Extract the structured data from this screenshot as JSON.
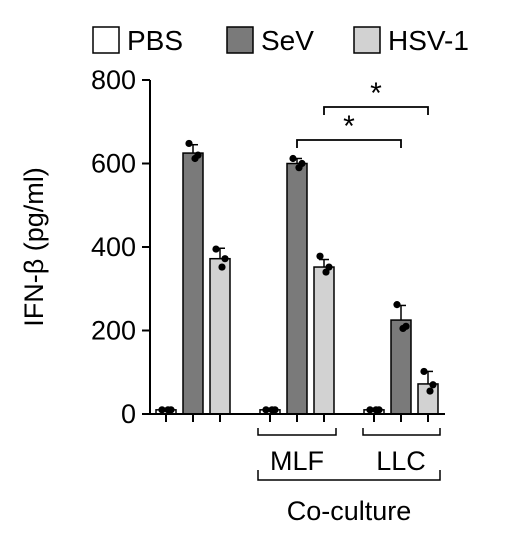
{
  "chart_data": {
    "type": "bar",
    "title": "",
    "ylabel": "IFN-β (pg/ml)",
    "ylim": [
      0,
      800
    ],
    "yticks": [
      "0",
      "200",
      "400",
      "600",
      "800"
    ],
    "legend_placement": "top",
    "groups": [
      {
        "name": "",
        "bracket_label": ""
      },
      {
        "name": "MLF",
        "bracket_label": "MLF"
      },
      {
        "name": "LLC",
        "bracket_label": "LLC"
      }
    ],
    "super_group_label": "Co-culture",
    "series": [
      {
        "name": "PBS",
        "color": "#ffffff",
        "values": [
          10,
          10,
          10
        ],
        "errors": [
          3,
          3,
          3
        ],
        "points": [
          [
            10,
            10,
            10
          ],
          [
            10,
            10,
            10
          ],
          [
            10,
            10,
            10
          ]
        ]
      },
      {
        "name": "SeV",
        "color": "#7a7a7a",
        "values": [
          625,
          600,
          225
        ],
        "errors": [
          20,
          12,
          35
        ],
        "points": [
          [
            648,
            620,
            612
          ],
          [
            612,
            600,
            590
          ],
          [
            262,
            210,
            205
          ]
        ]
      },
      {
        "name": "HSV-1",
        "color": "#d2d2d2",
        "values": [
          372,
          352,
          72
        ],
        "errors": [
          25,
          18,
          30
        ],
        "points": [
          [
            395,
            372,
            352
          ],
          [
            378,
            352,
            340
          ],
          [
            102,
            70,
            55
          ]
        ]
      }
    ],
    "significance": [
      {
        "label": "*",
        "from": "MLF SeV",
        "to": "LLC SeV"
      },
      {
        "label": "*",
        "from": "MLF HSV-1",
        "to": "LLC HSV-1"
      }
    ]
  }
}
